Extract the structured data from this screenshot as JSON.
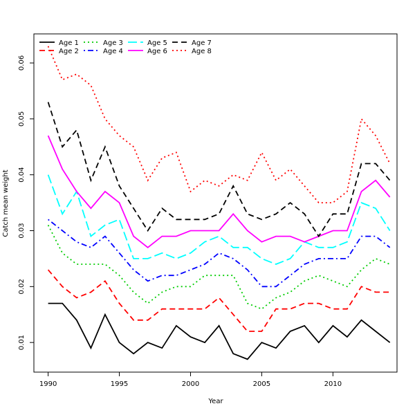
{
  "chart_data": {
    "type": "line",
    "title": "",
    "xlabel": "Year",
    "ylabel": "Catch mean weight",
    "xlim": [
      1989,
      2014.5
    ],
    "ylim": [
      0.0047,
      0.0652
    ],
    "x_ticks": [
      1990,
      1995,
      2000,
      2005,
      2010
    ],
    "x_tick_labels": [
      "1990",
      "1995",
      "2000",
      "2005",
      "2010"
    ],
    "y_ticks": [
      0.01,
      0.02,
      0.03,
      0.04,
      0.05,
      0.06
    ],
    "y_tick_labels": [
      "0.01",
      "0.02",
      "0.03",
      "0.04",
      "0.05",
      "0.06"
    ],
    "grid": false,
    "legend_position": "top-left",
    "x": [
      1990,
      1991,
      1992,
      1993,
      1994,
      1995,
      1996,
      1997,
      1998,
      1999,
      2000,
      2001,
      2002,
      2003,
      2004,
      2005,
      2006,
      2007,
      2008,
      2009,
      2010,
      2011,
      2012,
      2013,
      2014
    ],
    "series": [
      {
        "name": "Age 1",
        "color": "#000000",
        "dash": "solid",
        "values": [
          0.017,
          0.017,
          0.014,
          0.009,
          0.015,
          0.01,
          0.008,
          0.01,
          0.009,
          0.013,
          0.011,
          0.01,
          0.013,
          0.008,
          0.007,
          0.01,
          0.009,
          0.012,
          0.013,
          0.01,
          0.013,
          0.011,
          0.014,
          0.012,
          0.01
        ]
      },
      {
        "name": "Age 2",
        "color": "#ff0000",
        "dash": "dashed",
        "values": [
          0.023,
          0.02,
          0.018,
          0.019,
          0.021,
          0.017,
          0.014,
          0.014,
          0.016,
          0.016,
          0.016,
          0.016,
          0.018,
          0.015,
          0.012,
          0.012,
          0.016,
          0.016,
          0.017,
          0.017,
          0.016,
          0.016,
          0.02,
          0.019,
          0.019
        ]
      },
      {
        "name": "Age 3",
        "color": "#00cc00",
        "dash": "dotted",
        "values": [
          0.031,
          0.026,
          0.024,
          0.024,
          0.024,
          0.022,
          0.019,
          0.017,
          0.019,
          0.02,
          0.02,
          0.022,
          0.022,
          0.022,
          0.017,
          0.016,
          0.018,
          0.019,
          0.021,
          0.022,
          0.021,
          0.02,
          0.023,
          0.025,
          0.024
        ]
      },
      {
        "name": "Age 4",
        "color": "#0000ff",
        "dash": "dotdash",
        "values": [
          0.032,
          0.03,
          0.028,
          0.027,
          0.029,
          0.026,
          0.023,
          0.021,
          0.022,
          0.022,
          0.023,
          0.024,
          0.026,
          0.025,
          0.023,
          0.02,
          0.02,
          0.022,
          0.024,
          0.025,
          0.025,
          0.025,
          0.029,
          0.029,
          0.027
        ]
      },
      {
        "name": "Age 5",
        "color": "#00ffff",
        "dash": "longdash",
        "values": [
          0.04,
          0.033,
          0.037,
          0.029,
          0.031,
          0.032,
          0.025,
          0.025,
          0.026,
          0.025,
          0.026,
          0.028,
          0.029,
          0.027,
          0.027,
          0.025,
          0.024,
          0.025,
          0.028,
          0.027,
          0.027,
          0.028,
          0.035,
          0.034,
          0.03
        ]
      },
      {
        "name": "Age 6",
        "color": "#ff00ff",
        "dash": "solid",
        "values": [
          0.047,
          0.041,
          0.037,
          0.034,
          0.037,
          0.035,
          0.029,
          0.027,
          0.029,
          0.029,
          0.03,
          0.03,
          0.03,
          0.033,
          0.03,
          0.028,
          0.029,
          0.029,
          0.028,
          0.029,
          0.03,
          0.03,
          0.037,
          0.039,
          0.036
        ]
      },
      {
        "name": "Age 7",
        "color": "#000000",
        "dash": "dashed",
        "values": [
          0.053,
          0.045,
          0.048,
          0.039,
          0.045,
          0.038,
          0.034,
          0.03,
          0.034,
          0.032,
          0.032,
          0.032,
          0.033,
          0.038,
          0.033,
          0.032,
          0.033,
          0.035,
          0.033,
          0.029,
          0.033,
          0.033,
          0.042,
          0.042,
          0.039
        ]
      },
      {
        "name": "Age 8",
        "color": "#ff0000",
        "dash": "dotted",
        "values": [
          0.063,
          0.057,
          0.058,
          0.056,
          0.05,
          0.047,
          0.045,
          0.039,
          0.043,
          0.044,
          0.037,
          0.039,
          0.038,
          0.04,
          0.039,
          0.044,
          0.039,
          0.041,
          0.038,
          0.035,
          0.035,
          0.037,
          0.05,
          0.047,
          0.042
        ]
      }
    ]
  }
}
